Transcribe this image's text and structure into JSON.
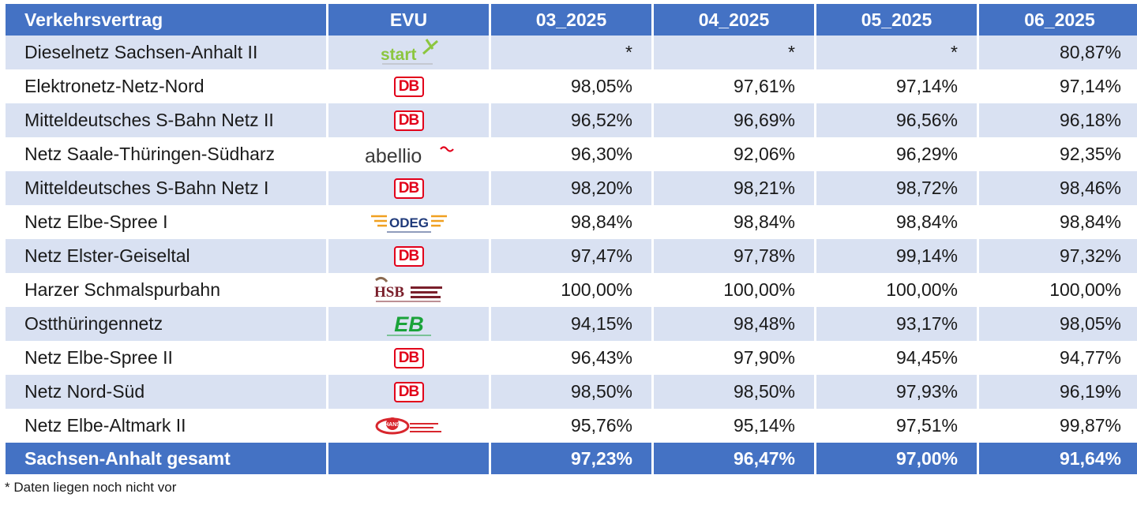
{
  "table": {
    "headers": [
      "Verkehrsvertrag",
      "EVU",
      "03_2025",
      "04_2025",
      "05_2025",
      "06_2025"
    ],
    "rows": [
      {
        "name": "Dieselnetz Sachsen-Anhalt II",
        "evu_icon": "start-logo",
        "values": [
          "*",
          "*",
          "*",
          "80,87%"
        ]
      },
      {
        "name": "Elektronetz-Netz-Nord",
        "evu_icon": "db-logo",
        "values": [
          "98,05%",
          "97,61%",
          "97,14%",
          "97,14%"
        ]
      },
      {
        "name": "Mitteldeutsches S-Bahn Netz II",
        "evu_icon": "db-logo",
        "values": [
          "96,52%",
          "96,69%",
          "96,56%",
          "96,18%"
        ]
      },
      {
        "name": "Netz Saale-Thüringen-Südharz",
        "evu_icon": "abellio-logo",
        "values": [
          "96,30%",
          "92,06%",
          "96,29%",
          "92,35%"
        ]
      },
      {
        "name": "Mitteldeutsches S-Bahn Netz I",
        "evu_icon": "db-logo",
        "values": [
          "98,20%",
          "98,21%",
          "98,72%",
          "98,46%"
        ]
      },
      {
        "name": "Netz Elbe-Spree I",
        "evu_icon": "odeg-logo",
        "values": [
          "98,84%",
          "98,84%",
          "98,84%",
          "98,84%"
        ]
      },
      {
        "name": "Netz Elster-Geiseltal",
        "evu_icon": "db-logo",
        "values": [
          "97,47%",
          "97,78%",
          "99,14%",
          "97,32%"
        ]
      },
      {
        "name": "Harzer Schmalspurbahn",
        "evu_icon": "hsb-logo",
        "values": [
          "100,00%",
          "100,00%",
          "100,00%",
          "100,00%"
        ]
      },
      {
        "name": "Ostthüringennetz",
        "evu_icon": "eb-logo",
        "values": [
          "94,15%",
          "98,48%",
          "93,17%",
          "98,05%"
        ]
      },
      {
        "name": "Netz Elbe-Spree II",
        "evu_icon": "db-logo",
        "values": [
          "96,43%",
          "97,90%",
          "94,45%",
          "94,77%"
        ]
      },
      {
        "name": "Netz Nord-Süd",
        "evu_icon": "db-logo",
        "values": [
          "98,50%",
          "98,50%",
          "97,93%",
          "96,19%"
        ]
      },
      {
        "name": "Netz Elbe-Altmark II",
        "evu_icon": "hans-logo",
        "values": [
          "95,76%",
          "95,14%",
          "97,51%",
          "99,87%"
        ]
      }
    ],
    "total": {
      "name": "Sachsen-Anhalt gesamt",
      "values": [
        "97,23%",
        "96,47%",
        "97,00%",
        "91,64%"
      ]
    }
  },
  "logos": {
    "db": "DB",
    "start": "start",
    "abellio": "abellio",
    "odeg": "ODEG",
    "hsb": "HSB",
    "eb": "EB",
    "hans": "HANS"
  },
  "colors": {
    "header_bg": "#4472c4",
    "stripe_bg": "#d9e1f2",
    "db_red": "#e2001a"
  },
  "footnote": "* Daten liegen noch nicht vor"
}
